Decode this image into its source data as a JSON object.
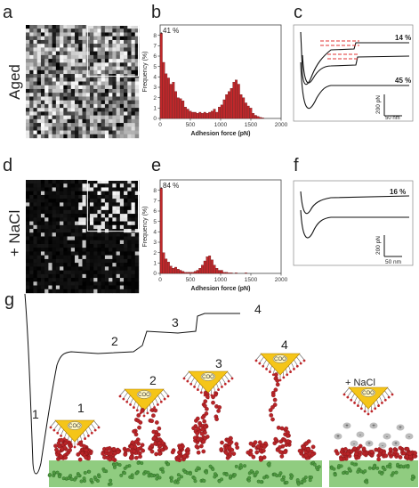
{
  "panels": {
    "a": "a",
    "b": "b",
    "c": "c",
    "d": "d",
    "e": "e",
    "f": "f",
    "g": "g"
  },
  "rows": {
    "top": "Aged",
    "bottom": "+ NaCl"
  },
  "colors": {
    "bar": "#c0282b",
    "substrate": "#90cc80",
    "tip": "#f5c518",
    "polymer": "#c0282b"
  },
  "chart_data": [
    {
      "type": "bar",
      "panel": "b",
      "xlabel": "Adhesion force (pN)",
      "ylabel": "Frequency (%)",
      "xlim": [
        0,
        2000
      ],
      "ylim": [
        0,
        9
      ],
      "xticks": [
        "0",
        "500",
        "1000",
        "1500",
        "2000"
      ],
      "yticks": [
        "0",
        "1",
        "2",
        "3",
        "4",
        "5",
        "6",
        "7",
        "8"
      ],
      "annotation": "41 %",
      "bin_width": 40,
      "values": [
        8.2,
        5.4,
        4.3,
        3.9,
        3.3,
        3.5,
        2.6,
        2.0,
        1.9,
        1.7,
        1.1,
        0.9,
        0.7,
        0.6,
        0.6,
        0.5,
        0.6,
        0.5,
        0.6,
        0.5,
        0.6,
        0.7,
        0.9,
        0.6,
        1.1,
        1.3,
        1.8,
        2.3,
        2.6,
        2.9,
        3.5,
        3.7,
        3.3,
        2.3,
        2.0,
        1.5,
        1.2,
        1.0,
        0.5,
        0.3,
        0.2,
        0.1,
        0.05,
        0,
        0,
        0,
        0,
        0,
        0,
        0
      ]
    },
    {
      "type": "bar",
      "panel": "e",
      "xlabel": "Adhesion force (pN)",
      "ylabel": "Frequency (%)",
      "xlim": [
        0,
        2000
      ],
      "ylim": [
        0,
        9
      ],
      "xticks": [
        "0",
        "500",
        "1000",
        "1500",
        "2000"
      ],
      "yticks": [
        "0",
        "1",
        "2",
        "3",
        "4",
        "5",
        "6",
        "7",
        "8"
      ],
      "annotation": "84 %",
      "bin_width": 40,
      "values": [
        8.2,
        2.0,
        1.4,
        1.1,
        0.7,
        0.5,
        0.6,
        0.4,
        0.3,
        0.2,
        0.1,
        0.1,
        0.1,
        0.1,
        0.2,
        0.3,
        0.5,
        0.8,
        1.2,
        1.6,
        1.7,
        1.3,
        0.8,
        0.5,
        0.3,
        0.3,
        0.1,
        0.1,
        0.05,
        0.05,
        0,
        0.05,
        0,
        0,
        0,
        0.05,
        0,
        0,
        0,
        0,
        0,
        0,
        0,
        0,
        0,
        0,
        0,
        0,
        0,
        0
      ]
    }
  ],
  "force_curves": {
    "c": {
      "labels": [
        "14 %",
        "45 %"
      ],
      "scale_force": "200 pN",
      "scale_dist": "50 nm"
    },
    "f": {
      "labels": [
        "16 %"
      ],
      "scale_force": "200 pN",
      "scale_dist": "50 nm"
    }
  },
  "schematic": {
    "steps": [
      "1",
      "2",
      "3",
      "4"
    ],
    "tip_label": "COO",
    "nacl_label": "+ NaCl",
    "ions": [
      "+",
      "-",
      "+",
      "-",
      "+",
      "-",
      "+",
      "-",
      "+",
      "-",
      "+"
    ]
  }
}
